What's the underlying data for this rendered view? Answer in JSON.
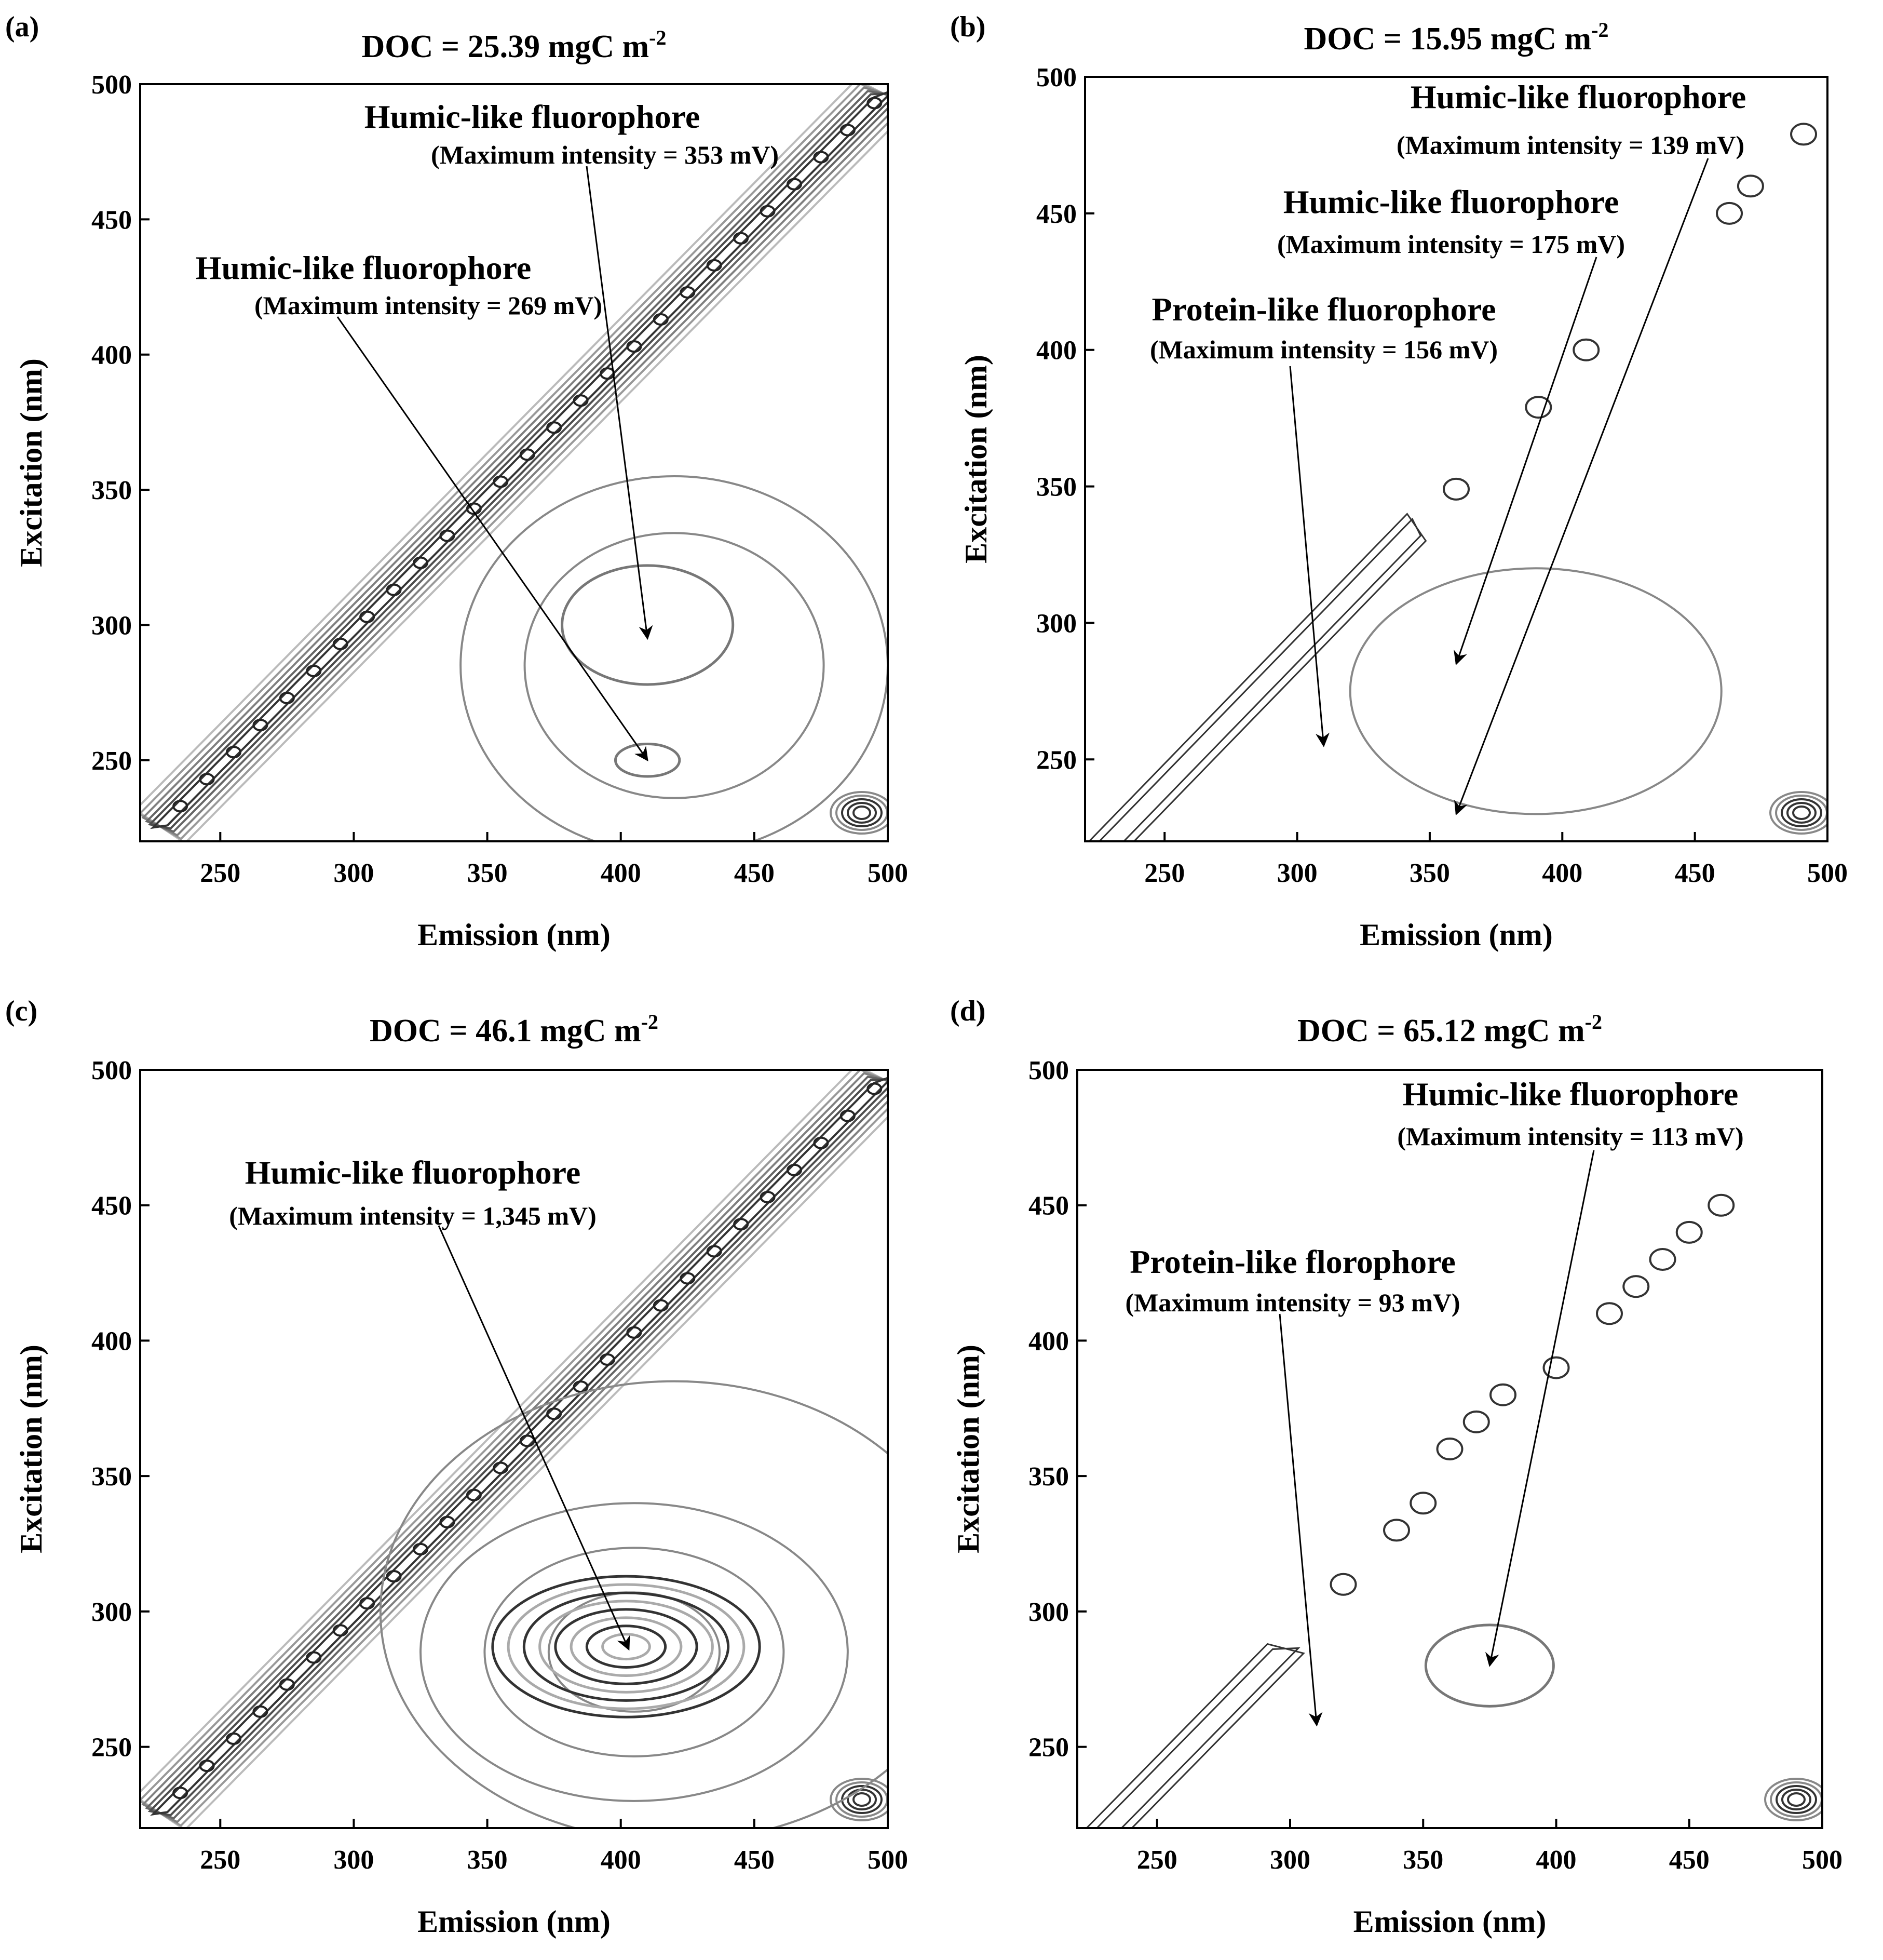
{
  "chart_data": [
    {
      "type": "contour",
      "panel": "(a)",
      "title": "DOC = 25.39 mgC m",
      "title_superscript": "-2",
      "xlabel": "Emission (nm)",
      "ylabel": "Excitation (nm)",
      "xlim": [
        220,
        500
      ],
      "ylim": [
        220,
        500
      ],
      "xticks": [
        250,
        300,
        350,
        400,
        450,
        500
      ],
      "yticks": [
        250,
        300,
        350,
        400,
        450,
        500
      ],
      "annotations": [
        {
          "title": "Humic-like fluorophore",
          "subtitle": "(Maximum intensity = 353 mV)",
          "peak_em": 410,
          "peak_ex": 295
        },
        {
          "title": "Humic-like fluorophore",
          "subtitle": "(Maximum intensity = 269 mV)",
          "peak_em": 410,
          "peak_ex": 250
        }
      ],
      "peaks": [
        {
          "em": 410,
          "ex": 300,
          "rx": 32,
          "ry": 22,
          "levels": 1
        },
        {
          "em": 410,
          "ex": 250,
          "rx": 12,
          "ry": 6,
          "levels": 1
        }
      ],
      "broad_contours": [
        {
          "em": 420,
          "ex": 285,
          "rx": 80,
          "ry": 70,
          "levels": 2
        }
      ],
      "scatter_bands": [
        {
          "em0": 225,
          "em1": 500,
          "offset": -2,
          "style": "dense"
        }
      ]
    },
    {
      "type": "contour",
      "panel": "(b)",
      "title": "DOC = 15.95 mgC m",
      "title_superscript": "-2",
      "xlabel": "Emission (nm)",
      "ylabel": "Excitation (nm)",
      "xlim": [
        220,
        500
      ],
      "ylim": [
        220,
        500
      ],
      "xticks": [
        250,
        300,
        350,
        400,
        450,
        500
      ],
      "yticks": [
        250,
        300,
        350,
        400,
        450,
        500
      ],
      "annotations": [
        {
          "title": "Humic-like fluorophore",
          "subtitle": "(Maximum intensity = 139 mV)",
          "peak_em": 360,
          "peak_ex": 230
        },
        {
          "title": "Humic-like fluorophore",
          "subtitle": "(Maximum intensity = 175 mV)",
          "peak_em": 360,
          "peak_ex": 285
        },
        {
          "title": "Protein-like fluorophore",
          "subtitle": "(Maximum intensity = 156 mV)",
          "peak_em": 310,
          "peak_ex": 255
        }
      ],
      "peaks": [],
      "broad_contours": [
        {
          "em": 390,
          "ex": 275,
          "rx": 70,
          "ry": 45,
          "levels": 1
        }
      ],
      "scatter_bands": [
        {
          "em0": 225,
          "em1": 345,
          "offset": -10,
          "style": "sparse"
        }
      ],
      "islands": [
        {
          "em": 360,
          "ex": 349
        },
        {
          "em": 391,
          "ex": 379
        },
        {
          "em": 409,
          "ex": 400
        },
        {
          "em": 463,
          "ex": 450
        },
        {
          "em": 471,
          "ex": 460
        },
        {
          "em": 491,
          "ex": 479
        }
      ]
    },
    {
      "type": "contour",
      "panel": "(c)",
      "title": "DOC = 46.1 mgC m",
      "title_superscript": "-2",
      "xlabel": "Emission (nm)",
      "ylabel": "Excitation (nm)",
      "xlim": [
        220,
        500
      ],
      "ylim": [
        220,
        500
      ],
      "xticks": [
        250,
        300,
        350,
        400,
        450,
        500
      ],
      "yticks": [
        250,
        300,
        350,
        400,
        450,
        500
      ],
      "annotations": [
        {
          "title": "Humic-like fluorophore",
          "subtitle": "(Maximum intensity = 1,345 mV)",
          "peak_em": 403,
          "peak_ex": 286
        }
      ],
      "peaks": [
        {
          "em": 402,
          "ex": 287,
          "rx": 50,
          "ry": 26,
          "levels": 8
        }
      ],
      "broad_contours": [
        {
          "em": 405,
          "ex": 285,
          "rx": 80,
          "ry": 55,
          "levels": 3
        },
        {
          "em": 420,
          "ex": 300,
          "rx": 110,
          "ry": 85,
          "levels": 1
        }
      ],
      "scatter_bands": [
        {
          "em0": 225,
          "em1": 500,
          "offset": -2,
          "style": "dense"
        }
      ]
    },
    {
      "type": "contour",
      "panel": "(d)",
      "title": "DOC = 65.12 mgC m",
      "title_superscript": "-2",
      "xlabel": "Emission (nm)",
      "ylabel": "Excitation (nm)",
      "xlim": [
        220,
        500
      ],
      "ylim": [
        220,
        500
      ],
      "xticks": [
        250,
        300,
        350,
        400,
        450,
        500
      ],
      "yticks": [
        250,
        300,
        350,
        400,
        450,
        500
      ],
      "annotations": [
        {
          "title": "Humic-like fluorophore",
          "subtitle": "(Maximum intensity = 113 mV)",
          "peak_em": 375,
          "peak_ex": 280
        },
        {
          "title": "Protein-like florophore",
          "subtitle": "(Maximum intensity = 93 mV)",
          "peak_em": 310,
          "peak_ex": 258
        }
      ],
      "peaks": [
        {
          "em": 375,
          "ex": 280,
          "rx": 24,
          "ry": 15,
          "levels": 1
        }
      ],
      "broad_contours": [],
      "scatter_bands": [
        {
          "em0": 225,
          "em1": 300,
          "offset": -12,
          "style": "sparse"
        }
      ],
      "islands": [
        {
          "em": 320,
          "ex": 310
        },
        {
          "em": 340,
          "ex": 330
        },
        {
          "em": 350,
          "ex": 340
        },
        {
          "em": 360,
          "ex": 360
        },
        {
          "em": 370,
          "ex": 370
        },
        {
          "em": 380,
          "ex": 380
        },
        {
          "em": 400,
          "ex": 390
        },
        {
          "em": 420,
          "ex": 410
        },
        {
          "em": 430,
          "ex": 420
        },
        {
          "em": 440,
          "ex": 430
        },
        {
          "em": 450,
          "ex": 440
        },
        {
          "em": 462,
          "ex": 450
        }
      ]
    }
  ]
}
